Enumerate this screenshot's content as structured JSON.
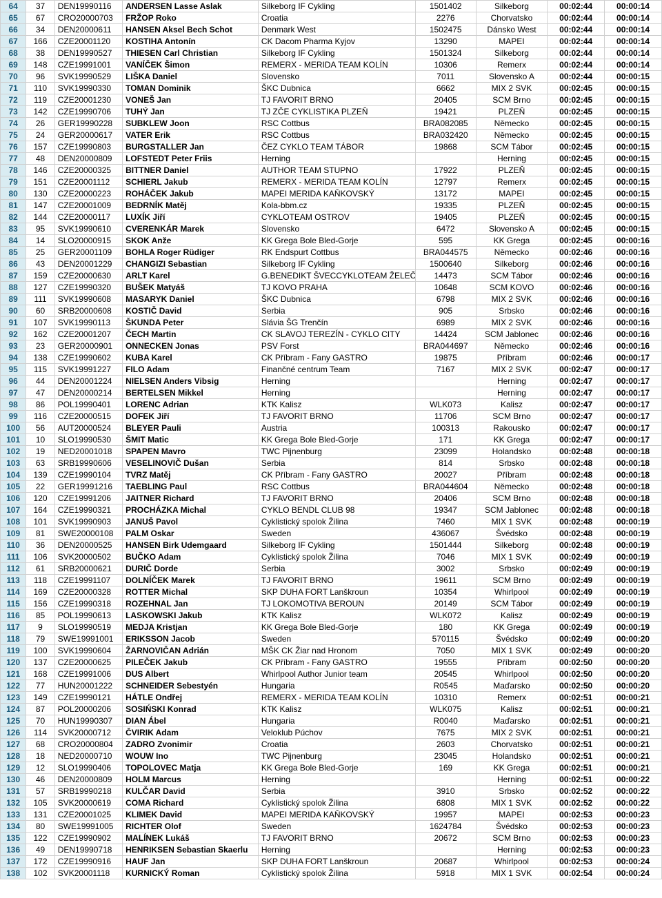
{
  "columns": [
    {
      "class": "c0",
      "key": "rank"
    },
    {
      "class": "c1",
      "key": "bib"
    },
    {
      "class": "c2",
      "key": "uci"
    },
    {
      "class": "c3",
      "key": "name"
    },
    {
      "class": "c4",
      "key": "team"
    },
    {
      "class": "c5",
      "key": "code"
    },
    {
      "class": "c6",
      "key": "country"
    },
    {
      "class": "c7",
      "key": "time"
    },
    {
      "class": "c8",
      "key": "gap"
    }
  ],
  "rows": [
    {
      "rank": "64",
      "bib": "37",
      "uci": "DEN19990116",
      "name": "ANDERSEN Lasse Aslak",
      "team": "Silkeborg IF Cykling",
      "code": "1501402",
      "country": "Silkeborg",
      "time": "00:02:44",
      "gap": "00:00:14"
    },
    {
      "rank": "65",
      "bib": "67",
      "uci": "CRO20000703",
      "name": "FRŽOP Roko",
      "team": "Croatia",
      "code": "2276",
      "country": "Chorvatsko",
      "time": "00:02:44",
      "gap": "00:00:14"
    },
    {
      "rank": "66",
      "bib": "34",
      "uci": "DEN20000611",
      "name": "HANSEN Aksel Bech Schot",
      "team": "Denmark West",
      "code": "1502475",
      "country": "Dánsko West",
      "time": "00:02:44",
      "gap": "00:00:14"
    },
    {
      "rank": "67",
      "bib": "166",
      "uci": "CZE20001120",
      "name": "KOSTIHA Antonín",
      "team": "CK Dacom Pharma Kyjov",
      "code": "13290",
      "country": "MAPEI",
      "time": "00:02:44",
      "gap": "00:00:14"
    },
    {
      "rank": "68",
      "bib": "38",
      "uci": "DEN19990527",
      "name": "THIESEN Carl Christian",
      "team": "Silkeborg IF Cykling",
      "code": "1501324",
      "country": "Silkeborg",
      "time": "00:02:44",
      "gap": "00:00:14"
    },
    {
      "rank": "69",
      "bib": "148",
      "uci": "CZE19991001",
      "name": "VANÍČEK Šimon",
      "team": "REMERX - MERIDA TEAM KOLÍN",
      "code": "10306",
      "country": "Remerx",
      "time": "00:02:44",
      "gap": "00:00:14"
    },
    {
      "rank": "70",
      "bib": "96",
      "uci": "SVK19990529",
      "name": "LIŠKA Daniel",
      "team": "Slovensko",
      "code": "7011",
      "country": "Slovensko A",
      "time": "00:02:44",
      "gap": "00:00:15"
    },
    {
      "rank": "71",
      "bib": "110",
      "uci": "SVK19990330",
      "name": "TOMAN Dominik",
      "team": "ŠKC Dubnica",
      "code": "6662",
      "country": "MIX 2  SVK",
      "time": "00:02:45",
      "gap": "00:00:15"
    },
    {
      "rank": "72",
      "bib": "119",
      "uci": "CZE20001230",
      "name": "VONEŠ Jan",
      "team": "TJ FAVORIT BRNO",
      "code": "20405",
      "country": "SCM Brno",
      "time": "00:02:45",
      "gap": "00:00:15"
    },
    {
      "rank": "73",
      "bib": "142",
      "uci": "CZE19990706",
      "name": "TUHÝ Jan",
      "team": "TJ ZČE CYKLISTIKA PLZEŇ",
      "code": "19421",
      "country": "PLZEŇ",
      "time": "00:02:45",
      "gap": "00:00:15"
    },
    {
      "rank": "74",
      "bib": "26",
      "uci": "GER19990228",
      "name": "SUBKLEW Joon",
      "team": "RSC Cottbus",
      "code": "BRA082085",
      "country": "Německo",
      "time": "00:02:45",
      "gap": "00:00:15"
    },
    {
      "rank": "75",
      "bib": "24",
      "uci": "GER20000617",
      "name": "VATER Erik",
      "team": "RSC Cottbus",
      "code": "BRA032420",
      "country": "Německo",
      "time": "00:02:45",
      "gap": "00:00:15"
    },
    {
      "rank": "76",
      "bib": "157",
      "uci": "CZE19990803",
      "name": "BURGSTALLER Jan",
      "team": "ČEZ CYKLO TEAM TÁBOR",
      "code": "19868",
      "country": "SCM Tábor",
      "time": "00:02:45",
      "gap": "00:00:15"
    },
    {
      "rank": "77",
      "bib": "48",
      "uci": "DEN20000809",
      "name": "LOFSTEDT Peter Friis",
      "team": "Herning",
      "code": "",
      "country": "Herning",
      "time": "00:02:45",
      "gap": "00:00:15"
    },
    {
      "rank": "78",
      "bib": "146",
      "uci": "CZE20000325",
      "name": "BITTNER Daniel",
      "team": "AUTHOR TEAM STUPNO",
      "code": "17922",
      "country": "PLZEŇ",
      "time": "00:02:45",
      "gap": "00:00:15"
    },
    {
      "rank": "79",
      "bib": "151",
      "uci": "CZE20001112",
      "name": "SCHIERL Jakub",
      "team": "REMERX - MERIDA TEAM KOLÍN",
      "code": "12797",
      "country": "Remerx",
      "time": "00:02:45",
      "gap": "00:00:15"
    },
    {
      "rank": "80",
      "bib": "130",
      "uci": "CZE20000223",
      "name": "ROHÁČEK Jakub",
      "team": "MAPEI MERIDA KAŇKOVSKÝ",
      "code": "13172",
      "country": "MAPEI",
      "time": "00:02:45",
      "gap": "00:00:15"
    },
    {
      "rank": "81",
      "bib": "147",
      "uci": "CZE20001009",
      "name": "BEDRNÍK Matěj",
      "team": "Kola-bbm.cz",
      "code": "19335",
      "country": "PLZEŇ",
      "time": "00:02:45",
      "gap": "00:00:15"
    },
    {
      "rank": "82",
      "bib": "144",
      "uci": "CZE20000117",
      "name": "LUXÍK Jiří",
      "team": "CYKLOTEAM OSTROV",
      "code": "19405",
      "country": "PLZEŇ",
      "time": "00:02:45",
      "gap": "00:00:15"
    },
    {
      "rank": "83",
      "bib": "95",
      "uci": "SVK19990610",
      "name": "CVERENKÁR Marek",
      "team": "Slovensko",
      "code": "6472",
      "country": "Slovensko A",
      "time": "00:02:45",
      "gap": "00:00:15"
    },
    {
      "rank": "84",
      "bib": "14",
      "uci": "SLO20000915",
      "name": "SKOK Anže",
      "team": "KK Grega Bole Bled-Gorje",
      "code": "595",
      "country": "KK Grega",
      "time": "00:02:45",
      "gap": "00:00:16"
    },
    {
      "rank": "85",
      "bib": "25",
      "uci": "GER20001109",
      "name": "BOHLA Roger Rüdiger",
      "team": "RK Endspurt Cottbus",
      "code": "BRA044575",
      "country": "Německo",
      "time": "00:02:46",
      "gap": "00:00:16"
    },
    {
      "rank": "86",
      "bib": "43",
      "uci": "DEN20001229",
      "name": "CHANGIZI Sebastian",
      "team": "Silkeborg IF Cykling",
      "code": "1500640",
      "country": "Silkeborg",
      "time": "00:02:46",
      "gap": "00:00:16"
    },
    {
      "rank": "87",
      "bib": "159",
      "uci": "CZE20000630",
      "name": "ARLT Karel",
      "team": "G.BENEDIKT ŠVECCYKLOTEAM ŽELEČ",
      "code": "14473",
      "country": "SCM Tábor",
      "time": "00:02:46",
      "gap": "00:00:16"
    },
    {
      "rank": "88",
      "bib": "127",
      "uci": "CZE19990320",
      "name": "BUŠEK Matyáš",
      "team": "TJ KOVO PRAHA",
      "code": "10648",
      "country": "SCM KOVO",
      "time": "00:02:46",
      "gap": "00:00:16"
    },
    {
      "rank": "89",
      "bib": "111",
      "uci": "SVK19990608",
      "name": "MASARYK Daniel",
      "team": "ŠKC Dubnica",
      "code": "6798",
      "country": "MIX 2 SVK",
      "time": "00:02:46",
      "gap": "00:00:16"
    },
    {
      "rank": "90",
      "bib": "60",
      "uci": "SRB20000608",
      "name": "KOSTIČ David",
      "team": "Serbia",
      "code": "905",
      "country": "Srbsko",
      "time": "00:02:46",
      "gap": "00:00:16"
    },
    {
      "rank": "91",
      "bib": "107",
      "uci": "SVK19990113",
      "name": "ŠKUNDA Peter",
      "team": "Slávia ŠG  Trenčín",
      "code": "6989",
      "country": "MIX 2  SVK",
      "time": "00:02:46",
      "gap": "00:00:16"
    },
    {
      "rank": "92",
      "bib": "162",
      "uci": "CZE20001207",
      "name": "ČECH Martin",
      "team": "CK SLAVOJ TEREZÍN - CYKLO CITY",
      "code": "14424",
      "country": "SCM Jablonec",
      "time": "00:02:46",
      "gap": "00:00:16"
    },
    {
      "rank": "93",
      "bib": "23",
      "uci": "GER20000901",
      "name": "ONNECKEN Jonas",
      "team": "PSV Forst",
      "code": "BRA044697",
      "country": "Německo",
      "time": "00:02:46",
      "gap": "00:00:16"
    },
    {
      "rank": "94",
      "bib": "138",
      "uci": "CZE19990602",
      "name": "KUBA Karel",
      "team": "CK Příbram - Fany GASTRO",
      "code": "19875",
      "country": "Příbram",
      "time": "00:02:46",
      "gap": "00:00:17"
    },
    {
      "rank": "95",
      "bib": "115",
      "uci": "SVK19991227",
      "name": "FILO Adam",
      "team": "Finančné centrum Team",
      "code": "7167",
      "country": "MIX 2 SVK",
      "time": "00:02:47",
      "gap": "00:00:17"
    },
    {
      "rank": "96",
      "bib": "44",
      "uci": "DEN20001224",
      "name": "NIELSEN Anders Vibsig",
      "team": "Herning",
      "code": "",
      "country": "Herning",
      "time": "00:02:47",
      "gap": "00:00:17"
    },
    {
      "rank": "97",
      "bib": "47",
      "uci": "DEN20000214",
      "name": "BERTELSEN Mikkel",
      "team": "Herning",
      "code": "",
      "country": "Herning",
      "time": "00:02:47",
      "gap": "00:00:17"
    },
    {
      "rank": "98",
      "bib": "86",
      "uci": "POL19990401",
      "name": "LORENC Adrian",
      "team": "KTK Kalisz",
      "code": "WLK073",
      "country": "Kalisz",
      "time": "00:02:47",
      "gap": "00:00:17"
    },
    {
      "rank": "99",
      "bib": "116",
      "uci": "CZE20000515",
      "name": "DOFEK Jiří",
      "team": "TJ FAVORIT BRNO",
      "code": "11706",
      "country": "SCM Brno",
      "time": "00:02:47",
      "gap": "00:00:17"
    },
    {
      "rank": "100",
      "bib": "56",
      "uci": "AUT20000524",
      "name": "BLEYER Pauli",
      "team": "Austria",
      "code": "100313",
      "country": "Rakousko",
      "time": "00:02:47",
      "gap": "00:00:17"
    },
    {
      "rank": "101",
      "bib": "10",
      "uci": "SLO19990530",
      "name": "ŠMIT Matic",
      "team": "KK Grega Bole Bled-Gorje",
      "code": "171",
      "country": "KK Grega",
      "time": "00:02:47",
      "gap": "00:00:17"
    },
    {
      "rank": "102",
      "bib": "19",
      "uci": "NED20001018",
      "name": "SPAPEN Mavro",
      "team": "TWC Pijnenburg",
      "code": "23099",
      "country": "Holandsko",
      "time": "00:02:48",
      "gap": "00:00:18"
    },
    {
      "rank": "103",
      "bib": "63",
      "uci": "SRB19990606",
      "name": "VESELINOVIČ Dušan",
      "team": "Serbia",
      "code": "814",
      "country": "Srbsko",
      "time": "00:02:48",
      "gap": "00:00:18"
    },
    {
      "rank": "104",
      "bib": "139",
      "uci": "CZE19990104",
      "name": "TVRZ Matěj",
      "team": "CK Příbram - Fany GASTRO",
      "code": "20027",
      "country": "Příbram",
      "time": "00:02:48",
      "gap": "00:00:18"
    },
    {
      "rank": "105",
      "bib": "22",
      "uci": "GER19991216",
      "name": "TAEBLING Paul",
      "team": "RSC Cottbus",
      "code": "BRA044604",
      "country": "Německo",
      "time": "00:02:48",
      "gap": "00:00:18"
    },
    {
      "rank": "106",
      "bib": "120",
      "uci": "CZE19991206",
      "name": "JAITNER Richard",
      "team": "TJ FAVORIT BRNO",
      "code": "20406",
      "country": "SCM Brno",
      "time": "00:02:48",
      "gap": "00:00:18"
    },
    {
      "rank": "107",
      "bib": "164",
      "uci": "CZE19990321",
      "name": "PROCHÁZKA Michal",
      "team": "CYKLO BENDL CLUB 98",
      "code": "19347",
      "country": "SCM Jablonec",
      "time": "00:02:48",
      "gap": "00:00:18"
    },
    {
      "rank": "108",
      "bib": "101",
      "uci": "SVK19990903",
      "name": "JANUŠ Pavol",
      "team": "Cyklistický spolok Žilina",
      "code": "7460",
      "country": "MIX 1 SVK",
      "time": "00:02:48",
      "gap": "00:00:19"
    },
    {
      "rank": "109",
      "bib": "81",
      "uci": "SWE20000108",
      "name": "PALM Oskar",
      "team": "Sweden",
      "code": "436067",
      "country": "Švédsko",
      "time": "00:02:48",
      "gap": "00:00:19"
    },
    {
      "rank": "110",
      "bib": "36",
      "uci": "DEN20000525",
      "name": "HANSEN Birk Udemgaard",
      "team": "Silkeborg IF Cykling",
      "code": "1501444",
      "country": "Silkeborg",
      "time": "00:02:48",
      "gap": "00:00:19"
    },
    {
      "rank": "111",
      "bib": "106",
      "uci": "SVK20000502",
      "name": "BUČKO Adam",
      "team": "Cyklistický spolok Žilina",
      "code": "7046",
      "country": "MIX 1  SVK",
      "time": "00:02:49",
      "gap": "00:00:19"
    },
    {
      "rank": "112",
      "bib": "61",
      "uci": "SRB20000621",
      "name": "DURIČ Dorde",
      "team": "Serbia",
      "code": "3002",
      "country": "Srbsko",
      "time": "00:02:49",
      "gap": "00:00:19"
    },
    {
      "rank": "113",
      "bib": "118",
      "uci": "CZE19991107",
      "name": "DOLNÍČEK Marek",
      "team": "TJ FAVORIT BRNO",
      "code": "19611",
      "country": "SCM Brno",
      "time": "00:02:49",
      "gap": "00:00:19"
    },
    {
      "rank": "114",
      "bib": "169",
      "uci": "CZE20000328",
      "name": "ROTTER Michal",
      "team": "SKP DUHA FORT Lanškroun",
      "code": "10354",
      "country": "Whirlpool",
      "time": "00:02:49",
      "gap": "00:00:19"
    },
    {
      "rank": "115",
      "bib": "156",
      "uci": "CZE19990318",
      "name": "ROZEHNAL Jan",
      "team": "TJ LOKOMOTIVA BEROUN",
      "code": "20149",
      "country": "SCM Tábor",
      "time": "00:02:49",
      "gap": "00:00:19"
    },
    {
      "rank": "116",
      "bib": "85",
      "uci": "POL19990613",
      "name": "LASKOWSKI Jakub",
      "team": "KTK Kalisz",
      "code": "WLK072",
      "country": "Kalisz",
      "time": "00:02:49",
      "gap": "00:00:19"
    },
    {
      "rank": "117",
      "bib": "9",
      "uci": "SLO19990519",
      "name": "MEDJA Kristjan",
      "team": "KK Grega Bole Bled-Gorje",
      "code": "180",
      "country": "KK Grega",
      "time": "00:02:49",
      "gap": "00:00:19"
    },
    {
      "rank": "118",
      "bib": "79",
      "uci": "SWE19991001",
      "name": "ERIKSSON Jacob",
      "team": "Sweden",
      "code": "570115",
      "country": "Švédsko",
      "time": "00:02:49",
      "gap": "00:00:20"
    },
    {
      "rank": "119",
      "bib": "100",
      "uci": "SVK19990604",
      "name": "ŽARNOVIČAN Adrián",
      "team": "MŠK CK Žiar nad Hronom",
      "code": "7050",
      "country": "MIX 1  SVK",
      "time": "00:02:49",
      "gap": "00:00:20"
    },
    {
      "rank": "120",
      "bib": "137",
      "uci": "CZE20000625",
      "name": "PILEČEK Jakub",
      "team": "CK Příbram - Fany GASTRO",
      "code": "19555",
      "country": "Příbram",
      "time": "00:02:50",
      "gap": "00:00:20"
    },
    {
      "rank": "121",
      "bib": "168",
      "uci": "CZE19991006",
      "name": "DUS Albert",
      "team": "Whirlpool Author Junior team",
      "code": "20545",
      "country": "Whirlpool",
      "time": "00:02:50",
      "gap": "00:00:20"
    },
    {
      "rank": "122",
      "bib": "77",
      "uci": "HUN20001222",
      "name": "SCHNEIDER Sebestyén",
      "team": "Hungaria",
      "code": "R0545",
      "country": "Maďarsko",
      "time": "00:02:50",
      "gap": "00:00:20"
    },
    {
      "rank": "123",
      "bib": "149",
      "uci": "CZE19990121",
      "name": "HÁTLE Ondřej",
      "team": "REMERX - MERIDA TEAM KOLÍN",
      "code": "10310",
      "country": "Remerx",
      "time": "00:02:51",
      "gap": "00:00:21"
    },
    {
      "rank": "124",
      "bib": "87",
      "uci": "POL20000206",
      "name": "SOSIŃSKI Konrad",
      "team": "KTK Kalisz",
      "code": "WLK075",
      "country": "Kalisz",
      "time": "00:02:51",
      "gap": "00:00:21"
    },
    {
      "rank": "125",
      "bib": "70",
      "uci": "HUN19990307",
      "name": "DIAN Ábel",
      "team": "Hungaria",
      "code": "R0040",
      "country": "Maďarsko",
      "time": "00:02:51",
      "gap": "00:00:21"
    },
    {
      "rank": "126",
      "bib": "114",
      "uci": "SVK20000712",
      "name": "ČVIRIK Adam",
      "team": "Veloklub Púchov",
      "code": "7675",
      "country": "MIX 2 SVK",
      "time": "00:02:51",
      "gap": "00:00:21"
    },
    {
      "rank": "127",
      "bib": "68",
      "uci": "CRO20000804",
      "name": "ZADRO Zvonimir",
      "team": "Croatia",
      "code": "2603",
      "country": "Chorvatsko",
      "time": "00:02:51",
      "gap": "00:00:21"
    },
    {
      "rank": "128",
      "bib": "18",
      "uci": "NED20000710",
      "name": "WOUW Ino",
      "team": "TWC Pijnenburg",
      "code": "23045",
      "country": "Holandsko",
      "time": "00:02:51",
      "gap": "00:00:21"
    },
    {
      "rank": "129",
      "bib": "12",
      "uci": "SLO19990406",
      "name": "TOPOLOVEC Matja",
      "team": "KK Grega Bole Bled-Gorje",
      "code": "169",
      "country": "KK Grega",
      "time": "00:02:51",
      "gap": "00:00:21"
    },
    {
      "rank": "130",
      "bib": "46",
      "uci": "DEN20000809",
      "name": "HOLM Marcus",
      "team": "Herning",
      "code": "",
      "country": "Herning",
      "time": "00:02:51",
      "gap": "00:00:22"
    },
    {
      "rank": "131",
      "bib": "57",
      "uci": "SRB19990218",
      "name": "KULČAR David",
      "team": "Serbia",
      "code": "3910",
      "country": "Srbsko",
      "time": "00:02:52",
      "gap": "00:00:22"
    },
    {
      "rank": "132",
      "bib": "105",
      "uci": "SVK20000619",
      "name": "COMA Richard",
      "team": "Cyklistický spolok Žilina",
      "code": "6808",
      "country": "MIX 1  SVK",
      "time": "00:02:52",
      "gap": "00:00:22"
    },
    {
      "rank": "133",
      "bib": "131",
      "uci": "CZE20001025",
      "name": "KLIMEK David",
      "team": "MAPEI MERIDA KAŇKOVSKÝ",
      "code": "19957",
      "country": "MAPEI",
      "time": "00:02:53",
      "gap": "00:00:23"
    },
    {
      "rank": "134",
      "bib": "80",
      "uci": "SWE19991005",
      "name": "RICHTER Olof",
      "team": "Sweden",
      "code": "1624784",
      "country": "Švédsko",
      "time": "00:02:53",
      "gap": "00:00:23"
    },
    {
      "rank": "135",
      "bib": "122",
      "uci": "CZE19990902",
      "name": "MALÍNEK Lukáš",
      "team": "TJ FAVORIT BRNO",
      "code": "20672",
      "country": "SCM Brno",
      "time": "00:02:53",
      "gap": "00:00:23"
    },
    {
      "rank": "136",
      "bib": "49",
      "uci": "DEN19990718",
      "name": "HENRIKSEN Sebastian Skaerlu",
      "team": "Herning",
      "code": "",
      "country": "Herning",
      "time": "00:02:53",
      "gap": "00:00:23"
    },
    {
      "rank": "137",
      "bib": "172",
      "uci": "CZE19990916",
      "name": "HAUF Jan",
      "team": "SKP DUHA FORT Lanškroun",
      "code": "20687",
      "country": "Whirlpool",
      "time": "00:02:53",
      "gap": "00:00:24"
    },
    {
      "rank": "138",
      "bib": "102",
      "uci": "SVK20001118",
      "name": "KURNICKÝ Roman",
      "team": "Cyklistický spolok Žilina",
      "code": "5918",
      "country": "MIX 1  SVK",
      "time": "00:02:54",
      "gap": "00:00:24"
    }
  ]
}
